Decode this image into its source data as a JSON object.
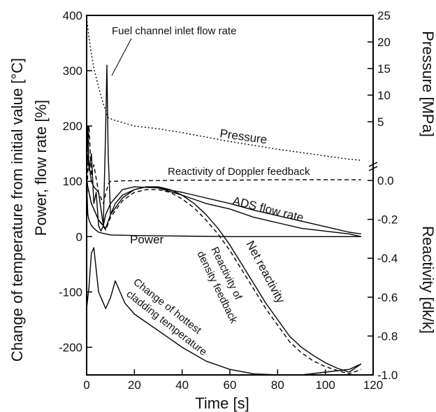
{
  "chart_data": {
    "type": "line",
    "xlabel": "Time [s]",
    "ylabel_left": "Change of temperature from initial value [°C]",
    "ylabel_left2": "Power, flow rate [%]",
    "ylabel_right_top": "Pressure [MPa]",
    "ylabel_right_bottom": "Reactivity [dk/k]",
    "xlim": [
      0,
      120
    ],
    "ylim_left": [
      -250,
      400
    ],
    "x_ticks": [
      "0",
      "20",
      "40",
      "60",
      "80",
      "100",
      "120"
    ],
    "left_ticks": [
      "400",
      "300",
      "200",
      "100",
      "0",
      "-100",
      "-200"
    ],
    "pressure_ticks": [
      "25",
      "20",
      "15",
      "10",
      "5"
    ],
    "reactivity_ticks": [
      "0.0",
      "-0.2",
      "-0.4",
      "-0.6",
      "-0.8",
      "-1.0"
    ],
    "annotations": {
      "fuel_inlet": "Fuel channel inlet flow rate",
      "pressure": "Pressure",
      "doppler": "Reactivity of Doppler feedback",
      "ads": "ADS flow rate",
      "power": "Power",
      "net": "Net reactivity",
      "density_1": "Reactivity of",
      "density_2": "density feedback",
      "clad_1": "Change of hottest",
      "clad_2": "cladding temperature"
    },
    "series": [
      {
        "key": "fuel_inlet",
        "style": "solid",
        "x": [
          0,
          0.5,
          1,
          2,
          3,
          4,
          5,
          6,
          7,
          8,
          8.5,
          9,
          10,
          12,
          15,
          20,
          25,
          30,
          40,
          50,
          60,
          70,
          80,
          90,
          100,
          110,
          115
        ],
        "y": [
          100,
          200,
          120,
          150,
          60,
          80,
          20,
          10,
          20,
          200,
          310,
          150,
          40,
          60,
          75,
          85,
          90,
          88,
          75,
          60,
          50,
          35,
          25,
          15,
          10,
          5,
          0
        ]
      },
      {
        "key": "pressure",
        "style": "dotted",
        "x": [
          0,
          1,
          2,
          3,
          5,
          7,
          9,
          12,
          20,
          30,
          40,
          50,
          60,
          70,
          80,
          90,
          100,
          110,
          115
        ],
        "y": [
          395,
          360,
          330,
          305,
          270,
          240,
          215,
          210,
          200,
          195,
          188,
          180,
          172,
          165,
          158,
          152,
          146,
          140,
          138
        ]
      },
      {
        "key": "doppler",
        "style": "dashed",
        "x": [
          0,
          1,
          2,
          3,
          5,
          7,
          9,
          10,
          12,
          15,
          20,
          40,
          60,
          80,
          100,
          115
        ],
        "y": [
          40,
          200,
          110,
          130,
          80,
          60,
          95,
          100,
          100,
          101,
          101,
          102,
          102,
          103,
          103,
          103
        ]
      },
      {
        "key": "ads",
        "style": "solid",
        "x": [
          0,
          1,
          2,
          3,
          5,
          7,
          8,
          10,
          12,
          15,
          20,
          30,
          40,
          50,
          60,
          70,
          80,
          90,
          100,
          110,
          115
        ],
        "y": [
          150,
          130,
          100,
          90,
          80,
          20,
          40,
          60,
          70,
          85,
          90,
          88,
          80,
          70,
          60,
          48,
          38,
          28,
          18,
          8,
          5
        ]
      },
      {
        "key": "power",
        "style": "solid",
        "x": [
          0,
          0.5,
          1,
          2,
          3,
          5,
          8,
          10,
          20,
          40,
          60,
          80,
          100,
          115
        ],
        "y": [
          100,
          40,
          30,
          20,
          15,
          8,
          5,
          3,
          2,
          1,
          0,
          0,
          0,
          0
        ]
      },
      {
        "key": "net",
        "style": "solid",
        "x": [
          0,
          2,
          5,
          8,
          10,
          15,
          20,
          25,
          30,
          35,
          40,
          45,
          50,
          55,
          60,
          65,
          70,
          75,
          80,
          85,
          90,
          95,
          100,
          105,
          110,
          115
        ],
        "y": [
          100,
          60,
          30,
          15,
          40,
          70,
          85,
          90,
          90,
          85,
          75,
          60,
          40,
          15,
          -15,
          -50,
          -85,
          -120,
          -150,
          -180,
          -200,
          -215,
          -228,
          -238,
          -245,
          -230
        ]
      },
      {
        "key": "density",
        "style": "dashed",
        "x": [
          0,
          2,
          5,
          8,
          10,
          15,
          20,
          25,
          30,
          35,
          40,
          45,
          50,
          55,
          60,
          65,
          70,
          75,
          80,
          85,
          90,
          95,
          100,
          105,
          110,
          115
        ],
        "y": [
          100,
          60,
          30,
          12,
          35,
          65,
          80,
          85,
          85,
          80,
          68,
          52,
          30,
          5,
          -25,
          -60,
          -95,
          -130,
          -160,
          -190,
          -210,
          -225,
          -235,
          -242,
          -248,
          -240
        ]
      },
      {
        "key": "cladding",
        "style": "solid",
        "x": [
          0,
          1,
          2,
          3,
          4,
          5,
          6,
          7,
          8,
          10,
          12,
          14,
          16,
          20,
          30,
          40,
          50,
          60,
          70,
          80,
          90,
          100,
          110,
          115
        ],
        "y": [
          -130,
          -90,
          -30,
          -20,
          -60,
          -100,
          -110,
          -120,
          -130,
          -110,
          -80,
          -100,
          -120,
          -140,
          -170,
          -200,
          -225,
          -240,
          -248,
          -250,
          -250,
          -245,
          -240,
          -230
        ]
      }
    ]
  }
}
